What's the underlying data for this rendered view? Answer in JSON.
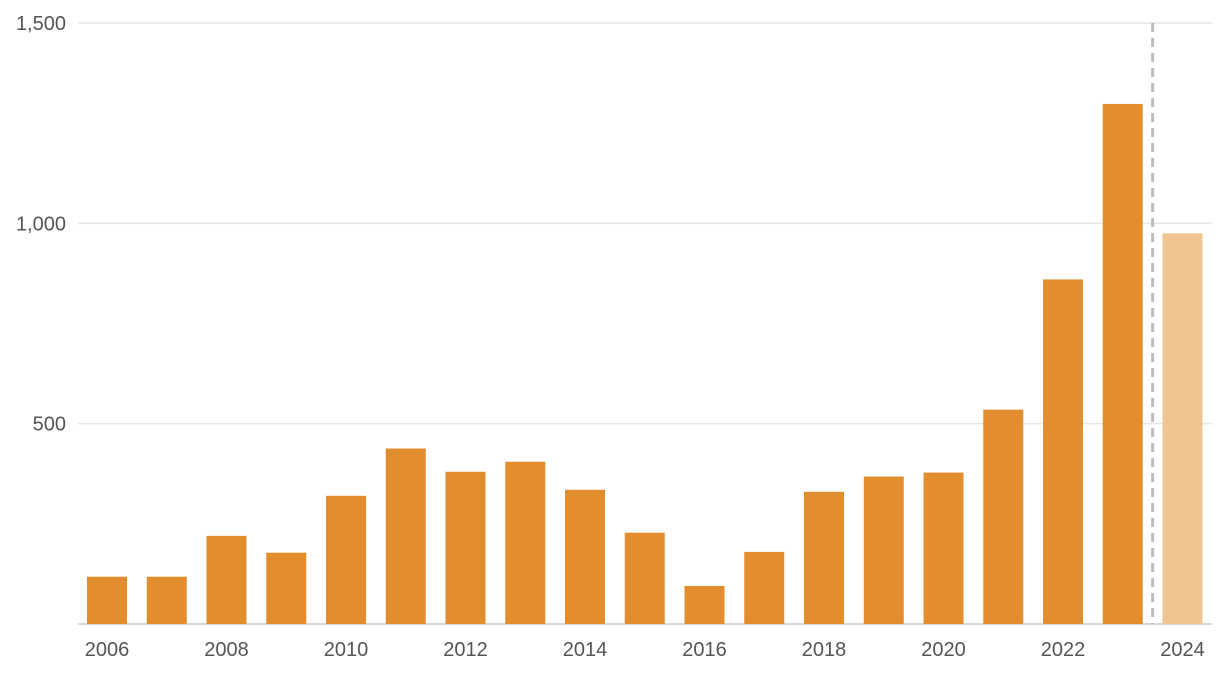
{
  "chart_data": {
    "type": "bar",
    "categories": [
      "2006",
      "2007",
      "2008",
      "2009",
      "2010",
      "2011",
      "2012",
      "2013",
      "2014",
      "2015",
      "2016",
      "2017",
      "2018",
      "2019",
      "2020",
      "2021",
      "2022",
      "2023",
      "2024"
    ],
    "values": [
      118,
      118,
      220,
      178,
      320,
      438,
      380,
      405,
      335,
      228,
      95,
      180,
      330,
      368,
      378,
      535,
      860,
      1298,
      975
    ],
    "x_tick_labels": [
      "2006",
      "2008",
      "2010",
      "2012",
      "2014",
      "2016",
      "2018",
      "2020",
      "2022",
      "2024"
    ],
    "y_ticks": [
      500,
      1000,
      1500
    ],
    "y_tick_labels": [
      "500",
      "1,000",
      "1,500"
    ],
    "ylim": [
      0,
      1500
    ],
    "grid": true,
    "title": "",
    "xlabel": "",
    "ylabel": "",
    "colors": {
      "bar": "#E38E2E",
      "bar_highlight": "#F0C592",
      "grid": "#E6E6E6",
      "divider": "#BDBDBD",
      "axis": "#CCCCCC"
    },
    "highlighted_category": "2024",
    "divider_after": "2023"
  }
}
